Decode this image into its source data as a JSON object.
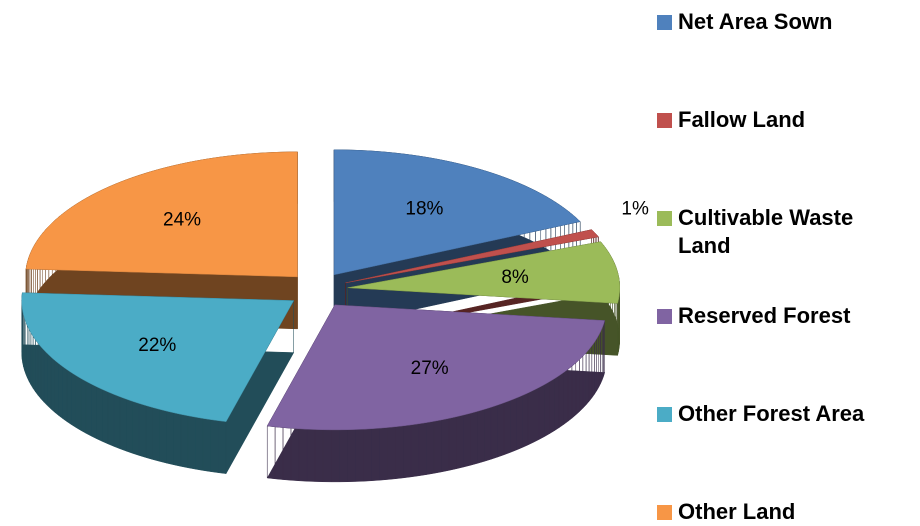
{
  "chart_data": {
    "type": "pie3d",
    "categories": [
      "Net Area Sown",
      "Fallow Land",
      "Cultivable Waste Land",
      "Reserved Forest",
      "Other Forest Area",
      "Other Land"
    ],
    "values": [
      18,
      1,
      8,
      27,
      22,
      24
    ],
    "value_labels": [
      "18%",
      "1%",
      "8%",
      "27%",
      "22%",
      "24%"
    ],
    "colors": [
      "#4f81bd",
      "#c0504d",
      "#9bbb59",
      "#8064a2",
      "#4bacc6",
      "#f79646"
    ],
    "legend": "right"
  }
}
